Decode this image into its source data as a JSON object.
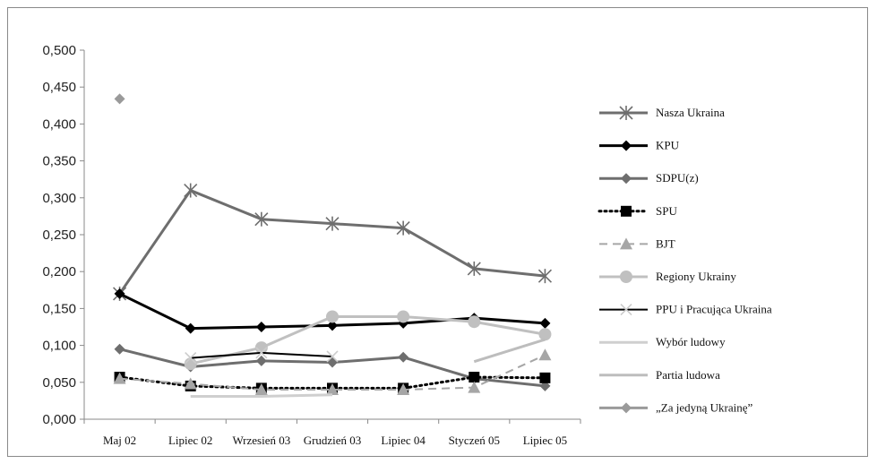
{
  "chart_data": {
    "type": "line",
    "title": "",
    "xlabel": "",
    "ylabel": "",
    "categories": [
      "Maj 02",
      "Lipiec 02",
      "Wrzesień 03",
      "Grudzień 03",
      "Lipiec 04",
      "Styczeń 05",
      "Lipiec 05"
    ],
    "ylim": [
      0,
      0.5
    ],
    "yticks": [
      "0,000",
      "0,050",
      "0,100",
      "0,150",
      "0,200",
      "0,250",
      "0,300",
      "0,350",
      "0,400",
      "0,450",
      "0,500"
    ],
    "grid": false,
    "legend_position": "right",
    "series": [
      {
        "name": "Nasza Ukraina",
        "color": "#6e6e6e",
        "style": "solid",
        "width": 3,
        "marker": "star",
        "values": [
          0.17,
          0.31,
          0.271,
          0.265,
          0.259,
          0.204,
          0.194
        ]
      },
      {
        "name": "KPU",
        "color": "#000000",
        "style": "solid",
        "width": 3,
        "marker": "diamond",
        "values": [
          0.17,
          0.123,
          0.125,
          0.127,
          0.13,
          0.137,
          0.13
        ]
      },
      {
        "name": "SDPU(z)",
        "color": "#6e6e6e",
        "style": "solid",
        "width": 3,
        "marker": "diamond",
        "values": [
          0.095,
          0.071,
          0.079,
          0.077,
          0.084,
          0.055,
          0.045
        ]
      },
      {
        "name": "SPU",
        "color": "#000000",
        "style": "dotted",
        "width": 3,
        "marker": "square",
        "values": [
          0.057,
          0.045,
          0.042,
          0.042,
          0.042,
          0.057,
          0.056
        ]
      },
      {
        "name": "BJT",
        "color": "#a6a6a6",
        "style": "dashed",
        "width": 2,
        "marker": "triangle",
        "values": [
          0.055,
          0.048,
          0.04,
          0.04,
          0.04,
          0.043,
          0.087
        ]
      },
      {
        "name": "Regiony Ukrainy",
        "color": "#c0c0c0",
        "style": "solid",
        "width": 3,
        "marker": "circle",
        "values": [
          null,
          0.075,
          0.097,
          0.139,
          0.139,
          0.132,
          0.115
        ]
      },
      {
        "name": "PPU i Pracująca Ukraina",
        "color": "#000000",
        "style": "solid",
        "width": 2,
        "marker": "x",
        "values": [
          null,
          0.083,
          0.09,
          0.085,
          null,
          null,
          null
        ]
      },
      {
        "name": "Wybór ludowy",
        "color": "#cfcfcf",
        "style": "solid",
        "width": 3,
        "marker": "none",
        "values": [
          null,
          0.031,
          0.031,
          0.033,
          null,
          null,
          null
        ]
      },
      {
        "name": "Partia ludowa",
        "color": "#bdbdbd",
        "style": "solid",
        "width": 3,
        "marker": "none",
        "values": [
          null,
          null,
          null,
          null,
          null,
          0.078,
          0.108
        ]
      },
      {
        "name": "„Za jedyną Ukrainę”",
        "color": "#9a9a9a",
        "style": "solid",
        "width": 3,
        "marker": "diamond",
        "values": [
          0.434,
          null,
          null,
          null,
          null,
          null,
          null
        ]
      }
    ]
  }
}
